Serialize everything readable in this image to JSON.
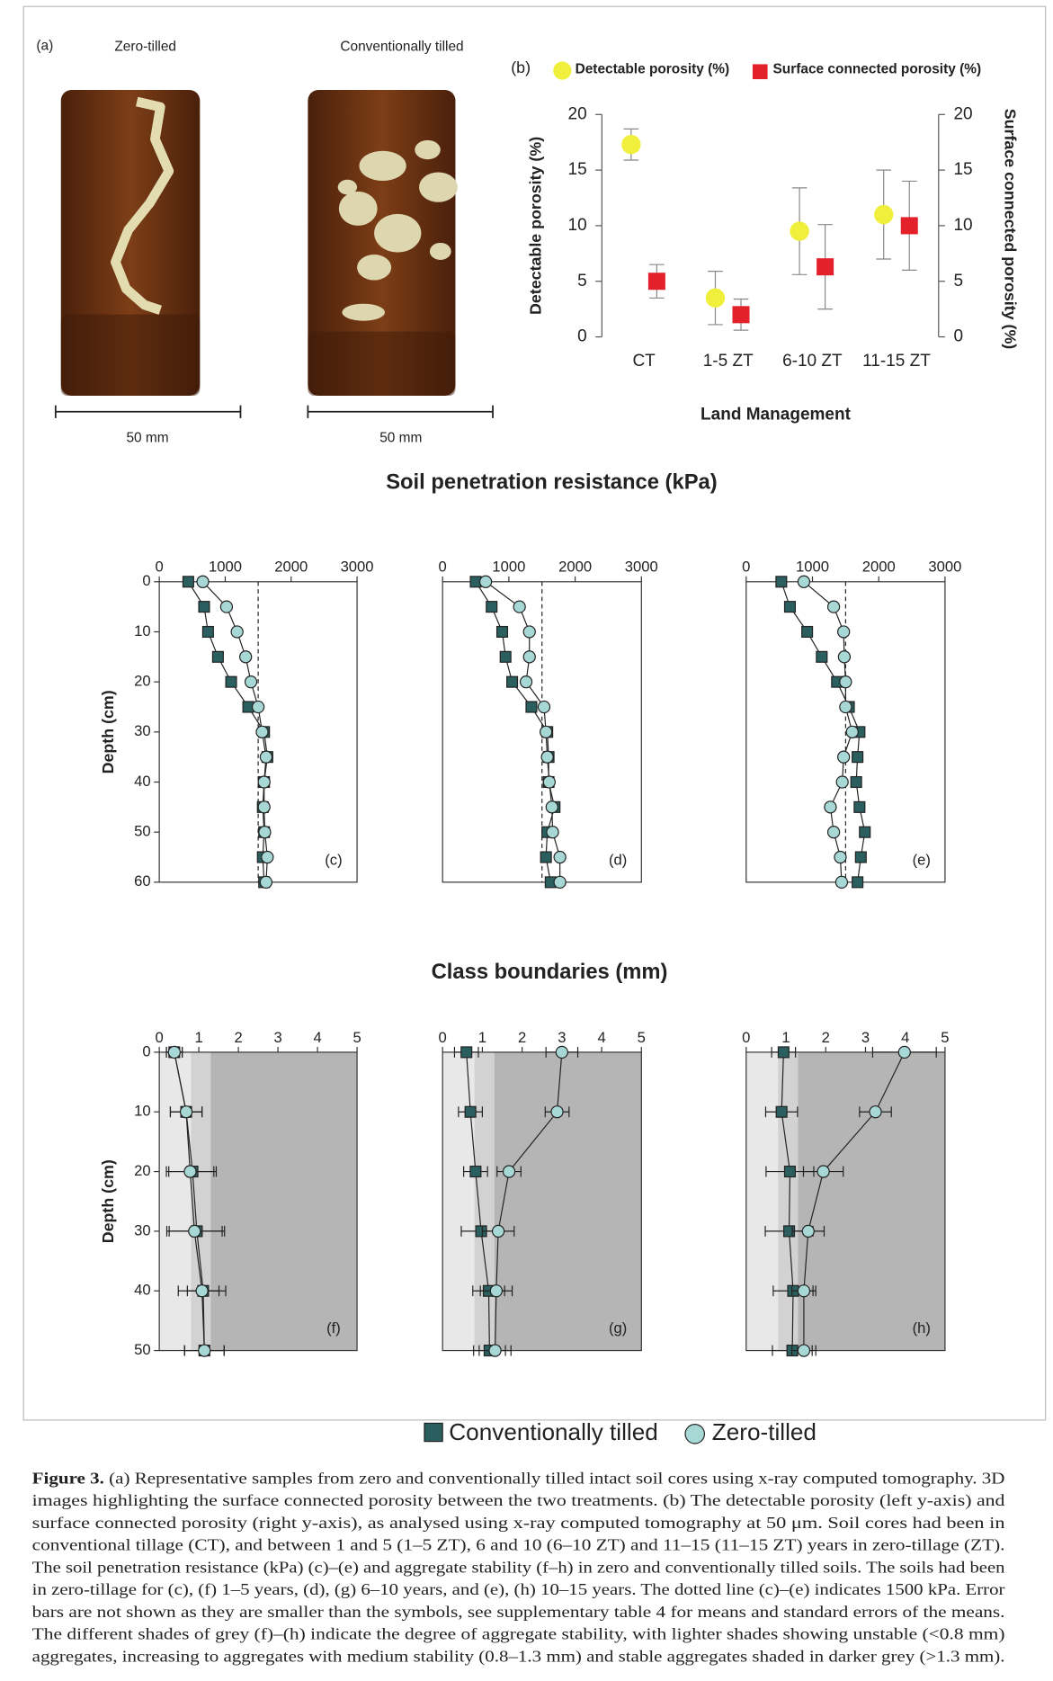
{
  "figure": {
    "panel_a": {
      "label": "(a)",
      "left_title": "Zero-tilled",
      "right_title": "Conventionally tilled",
      "left_scale": "50 mm",
      "right_scale": "50 mm"
    },
    "section_c_e": "Soil penetration resistance (kPa)",
    "section_f_h": "Class boundaries (mm)",
    "legend": [
      {
        "name": "Conventionally tilled",
        "color": "#2b5e5e",
        "marker": "square"
      },
      {
        "name": "Zero-tilled",
        "color": "#a8d8d5",
        "marker": "circle"
      }
    ],
    "caption": {
      "label": "Figure 3.",
      "lines": [
        "(a) Representative samples from zero and conventionally tilled intact soil cores using x-ray computed tomography. 3D",
        "images highlighting the surface connected porosity between the two treatments. (b) The detectable porosity (left y-axis) and",
        "surface connected porosity (right y-axis), as analysed using x-ray computed tomography at 50 μm. Soil cores had been in",
        "conventional tillage (CT), and between 1 and 5 (1–5 ZT), 6 and 10 (6–10 ZT) and 11–15 (11–15 ZT) years in zero-tillage (ZT).",
        "The soil penetration resistance (kPa) (c)–(e) and aggregate stability (f–h) in zero and conventionally tilled soils. The soils had been",
        "in zero-tillage for (c), (f) 1–5 years, (d), (g) 6–10 years, and (e), (h) 10–15 years. The dotted line (c)–(e) indicates 1500 kPa. Error",
        "bars are not shown as they are smaller than the symbols, see supplementary table 4 for means and standard errors of the means.",
        "The different shades of grey (f)–(h) indicate the degree of aggregate stability, with lighter shades showing unstable (<0.8 mm)",
        "aggregates, increasing to aggregates with medium stability (0.8–1.3 mm) and stable aggregates shaded in darker grey (>1.3 mm)."
      ]
    }
  },
  "chart_data": [
    {
      "type": "scatter",
      "panel": "(b)",
      "categories": [
        "CT",
        "1-5 ZT",
        "6-10 ZT",
        "11-15 ZT"
      ],
      "xlabel": "Land Management",
      "ylabel": "Detectable porosity (%)",
      "y2label": "Surface connected porosity (%)",
      "ylim": [
        0,
        20
      ],
      "yticks": [
        0,
        5,
        10,
        15,
        20
      ],
      "y2lim": [
        0,
        20
      ],
      "y2ticks": [
        0,
        5,
        10,
        15,
        20
      ],
      "series": [
        {
          "name": "Detectable porosity (%)",
          "color": "#f0f03c",
          "marker": "circle",
          "values": [
            17.3,
            3.5,
            9.5,
            11
          ],
          "errors": [
            1.4,
            2.4,
            3.9,
            4
          ]
        },
        {
          "name": "Surface connected porosity (%)",
          "color": "#e3212b",
          "marker": "square",
          "axis": "y2",
          "values": [
            5,
            2,
            6.3,
            10
          ],
          "errors": [
            1.5,
            1.4,
            3.8,
            4
          ]
        }
      ]
    },
    {
      "type": "line",
      "panel": "(c)",
      "ylabel": "Depth (cm)",
      "xlim": [
        0,
        3000
      ],
      "xticks": [
        0,
        1000,
        2000,
        3000
      ],
      "ylim": [
        0,
        60
      ],
      "yticks": [
        0,
        10,
        20,
        30,
        40,
        50,
        60
      ],
      "reference_line": 1500,
      "y": [
        0,
        5,
        10,
        15,
        20,
        25,
        30,
        35,
        40,
        45,
        50,
        55,
        60
      ],
      "series": [
        {
          "color": "#2b5e5e",
          "marker": "square",
          "values": [
            440,
            680,
            740,
            890,
            1090,
            1350,
            1590,
            1640,
            1590,
            1570,
            1590,
            1570,
            1590
          ]
        },
        {
          "color": "#a8d8d5",
          "marker": "circle",
          "values": [
            660,
            1020,
            1180,
            1310,
            1390,
            1500,
            1560,
            1620,
            1590,
            1590,
            1600,
            1640,
            1620
          ]
        }
      ]
    },
    {
      "type": "line",
      "panel": "(d)",
      "xlim": [
        0,
        3000
      ],
      "xticks": [
        0,
        1000,
        2000,
        3000
      ],
      "ylim": [
        0,
        60
      ],
      "reference_line": 1500,
      "y": [
        0,
        5,
        10,
        15,
        20,
        25,
        30,
        35,
        40,
        45,
        50,
        55,
        60
      ],
      "series": [
        {
          "color": "#2b5e5e",
          "marker": "square",
          "values": [
            500,
            740,
            900,
            950,
            1050,
            1340,
            1580,
            1600,
            1600,
            1690,
            1580,
            1560,
            1630
          ]
        },
        {
          "color": "#a8d8d5",
          "marker": "circle",
          "values": [
            650,
            1160,
            1310,
            1310,
            1260,
            1530,
            1560,
            1580,
            1610,
            1650,
            1660,
            1770,
            1770
          ]
        }
      ]
    },
    {
      "type": "line",
      "panel": "(e)",
      "xlim": [
        0,
        3000
      ],
      "xticks": [
        0,
        1000,
        2000,
        3000
      ],
      "ylim": [
        0,
        60
      ],
      "reference_line": 1500,
      "y": [
        0,
        5,
        10,
        15,
        20,
        25,
        30,
        35,
        40,
        45,
        50,
        55,
        60
      ],
      "series": [
        {
          "color": "#2b5e5e",
          "marker": "square",
          "values": [
            530,
            660,
            920,
            1140,
            1370,
            1550,
            1710,
            1680,
            1660,
            1710,
            1790,
            1730,
            1680
          ]
        },
        {
          "color": "#a8d8d5",
          "marker": "circle",
          "values": [
            870,
            1320,
            1470,
            1480,
            1500,
            1500,
            1600,
            1470,
            1450,
            1270,
            1320,
            1420,
            1440
          ]
        }
      ]
    },
    {
      "type": "line",
      "panel": "(f)",
      "ylabel": "Depth (cm)",
      "xlim": [
        0,
        5
      ],
      "xticks": [
        0,
        1,
        2,
        3,
        4,
        5
      ],
      "ylim": [
        0,
        50
      ],
      "yticks": [
        0,
        10,
        20,
        30,
        40,
        50
      ],
      "stability_bounds": [
        0.8,
        1.3
      ],
      "band_colors": [
        "#e8e8e8",
        "#d2d2d2",
        "#b5b5b5"
      ],
      "y": [
        0,
        10,
        20,
        30,
        40,
        50
      ],
      "series": [
        {
          "color": "#2b5e5e",
          "marker": "square",
          "values": [
            0.38,
            0.68,
            0.84,
            0.95,
            1.11,
            1.14
          ],
          "errors": [
            0.2,
            0.4,
            0.6,
            0.7,
            0.4,
            0.5
          ]
        },
        {
          "color": "#a8d8d5",
          "marker": "circle",
          "values": [
            0.38,
            0.68,
            0.78,
            0.89,
            1.08,
            1.14
          ],
          "errors": [
            0.2,
            0.4,
            0.6,
            0.7,
            0.6,
            0.5
          ]
        }
      ]
    },
    {
      "type": "line",
      "panel": "(g)",
      "xlim": [
        0,
        5
      ],
      "xticks": [
        0,
        1,
        2,
        3,
        4,
        5
      ],
      "ylim": [
        0,
        50
      ],
      "stability_bounds": [
        0.8,
        1.3
      ],
      "band_colors": [
        "#e8e8e8",
        "#d2d2d2",
        "#b5b5b5"
      ],
      "y": [
        0,
        10,
        20,
        30,
        40,
        50
      ],
      "series": [
        {
          "color": "#2b5e5e",
          "marker": "square",
          "values": [
            0.6,
            0.7,
            0.83,
            0.97,
            1.16,
            1.18
          ],
          "errors": [
            0.3,
            0.3,
            0.3,
            0.5,
            0.4,
            0.4
          ]
        },
        {
          "color": "#a8d8d5",
          "marker": "circle",
          "values": [
            3.0,
            2.88,
            1.67,
            1.4,
            1.35,
            1.32
          ],
          "errors": [
            0.4,
            0.3,
            0.3,
            0.4,
            0.4,
            0.4
          ]
        }
      ]
    },
    {
      "type": "line",
      "panel": "(h)",
      "xlim": [
        0,
        5
      ],
      "xticks": [
        0,
        1,
        2,
        3,
        4,
        5
      ],
      "ylim": [
        0,
        50
      ],
      "stability_bounds": [
        0.8,
        1.3
      ],
      "band_colors": [
        "#e8e8e8",
        "#d2d2d2",
        "#b5b5b5"
      ],
      "y": [
        0,
        10,
        20,
        30,
        40,
        50
      ],
      "series": [
        {
          "color": "#2b5e5e",
          "marker": "square",
          "values": [
            0.94,
            0.89,
            1.1,
            1.08,
            1.18,
            1.16
          ],
          "errors": [
            0.3,
            0.4,
            0.6,
            0.6,
            0.5,
            0.5
          ]
        },
        {
          "color": "#a8d8d5",
          "marker": "circle",
          "values": [
            3.98,
            3.25,
            1.94,
            1.56,
            1.45,
            1.45
          ],
          "errors": [
            0.8,
            0.4,
            0.5,
            0.4,
            0.3,
            0.3
          ]
        }
      ]
    }
  ]
}
